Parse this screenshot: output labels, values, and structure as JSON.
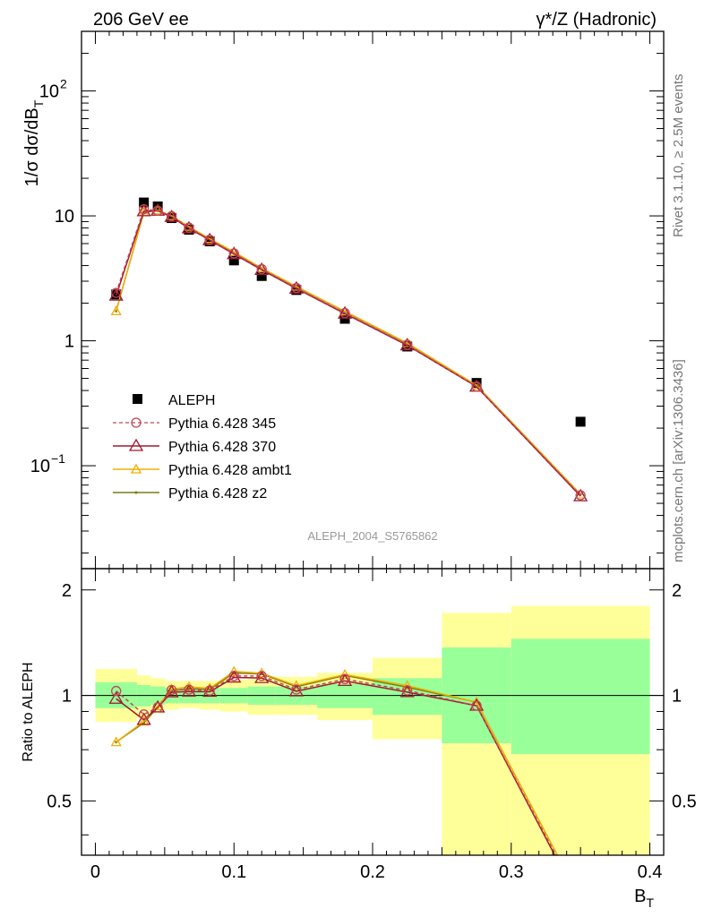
{
  "header": {
    "left": "206 GeV ee",
    "right": "γ*/Z (Hadronic)"
  },
  "side_labels": {
    "upper": "Rivet 3.1.10, ≥ 2.5M events",
    "lower": "mcplots.cern.ch [arXiv:1306.3436]"
  },
  "watermark": "ALEPH_2004_S5765862",
  "legend": {
    "data": "ALEPH",
    "p345": "Pythia 6.428 345",
    "p370": "Pythia 6.428 370",
    "ambt1": "Pythia 6.428 ambt1",
    "z2": "Pythia 6.428 z2"
  },
  "colors": {
    "data": "#000000",
    "p345": "#c0455a",
    "p370": "#a01830",
    "ambt1": "#f0b000",
    "z2": "#7d7a12",
    "band_inner": "#99ff99",
    "band_outer": "#ffff99"
  },
  "chart_data": {
    "type": "line",
    "xlabel_main": "B",
    "xlabel_sub": "T",
    "ylabel_main": "1/σ  dσ/dB",
    "ylabel_sub": "T",
    "ratio_ylabel": "Ratio to ALEPH",
    "xlim": [
      -0.01,
      0.41
    ],
    "ylim_main": [
      0.015,
      300
    ],
    "yscale_main": "log",
    "ylim_ratio": [
      0.35,
      2.3
    ],
    "ratio_yscale": "log",
    "x_ticks": [
      "0",
      "0.1",
      "0.2",
      "0.3",
      "0.4"
    ],
    "y_ticks_main": [
      "10",
      "1"
    ],
    "y_ticks_main_pow": [
      "10",
      "10"
    ],
    "y_ticks_main_exp": [
      "2",
      "−1"
    ],
    "y_ticks_ratio": [
      "2",
      "1",
      "0.5"
    ],
    "data": {
      "x": [
        0.015,
        0.035,
        0.045,
        0.055,
        0.0675,
        0.0825,
        0.1,
        0.12,
        0.145,
        0.18,
        0.225,
        0.275,
        0.35
      ],
      "y": [
        2.35,
        12.8,
        11.9,
        9.6,
        7.75,
        6.25,
        4.4,
        3.3,
        2.55,
        1.5,
        0.9,
        0.46,
        0.225
      ]
    },
    "bins": [
      {
        "lo": 0.0,
        "hi": 0.03,
        "inner": [
          0.92,
          1.09
        ],
        "outer": [
          0.84,
          1.19
        ]
      },
      {
        "lo": 0.03,
        "hi": 0.04,
        "inner": [
          0.93,
          1.07
        ],
        "outer": [
          0.86,
          1.14
        ]
      },
      {
        "lo": 0.04,
        "hi": 0.05,
        "inner": [
          0.94,
          1.06
        ],
        "outer": [
          0.89,
          1.12
        ]
      },
      {
        "lo": 0.05,
        "hi": 0.06,
        "inner": [
          0.95,
          1.05
        ],
        "outer": [
          0.91,
          1.1
        ]
      },
      {
        "lo": 0.06,
        "hi": 0.075,
        "inner": [
          0.95,
          1.05
        ],
        "outer": [
          0.92,
          1.1
        ]
      },
      {
        "lo": 0.075,
        "hi": 0.09,
        "inner": [
          0.95,
          1.05
        ],
        "outer": [
          0.91,
          1.1
        ]
      },
      {
        "lo": 0.09,
        "hi": 0.11,
        "inner": [
          0.95,
          1.05
        ],
        "outer": [
          0.9,
          1.11
        ]
      },
      {
        "lo": 0.11,
        "hi": 0.13,
        "inner": [
          0.94,
          1.06
        ],
        "outer": [
          0.88,
          1.12
        ]
      },
      {
        "lo": 0.13,
        "hi": 0.16,
        "inner": [
          0.94,
          1.06
        ],
        "outer": [
          0.88,
          1.13
        ]
      },
      {
        "lo": 0.16,
        "hi": 0.2,
        "inner": [
          0.92,
          1.08
        ],
        "outer": [
          0.85,
          1.16
        ]
      },
      {
        "lo": 0.2,
        "hi": 0.25,
        "inner": [
          0.88,
          1.12
        ],
        "outer": [
          0.75,
          1.28
        ]
      },
      {
        "lo": 0.25,
        "hi": 0.3,
        "inner": [
          0.73,
          1.37
        ],
        "outer": [
          0.3,
          1.72
        ]
      },
      {
        "lo": 0.3,
        "hi": 0.4,
        "inner": [
          0.68,
          1.45
        ],
        "outer": [
          0.3,
          1.8
        ]
      }
    ],
    "series": [
      {
        "name": "Pythia 6.428 345",
        "key": "p345",
        "y": [
          2.42,
          11.3,
          11.0,
          9.95,
          8.05,
          6.45,
          5.0,
          3.75,
          2.65,
          1.67,
          0.93,
          0.43,
          0.058
        ]
      },
      {
        "name": "Pythia 6.428 370",
        "key": "p370",
        "y": [
          2.3,
          10.9,
          11.0,
          9.8,
          7.95,
          6.4,
          4.95,
          3.7,
          2.62,
          1.65,
          0.92,
          0.43,
          0.057
        ]
      },
      {
        "name": "Pythia 6.428 ambt1",
        "key": "ambt1",
        "y": [
          1.73,
          10.8,
          11.1,
          10.0,
          8.2,
          6.55,
          5.15,
          3.82,
          2.72,
          1.72,
          0.96,
          0.44,
          0.059
        ]
      },
      {
        "name": "Pythia 6.428 z2",
        "key": "z2",
        "y": [
          1.73,
          10.7,
          11.0,
          9.9,
          8.1,
          6.5,
          5.1,
          3.8,
          2.7,
          1.71,
          0.95,
          0.44,
          0.059
        ]
      }
    ]
  }
}
